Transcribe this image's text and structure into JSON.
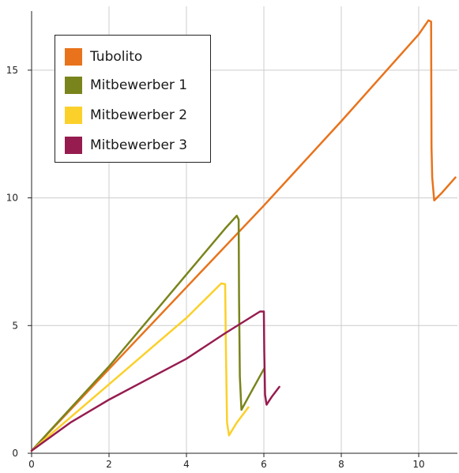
{
  "chart_data": {
    "type": "line",
    "title": "",
    "xlabel": "",
    "ylabel": "",
    "xlim": [
      0,
      11
    ],
    "ylim": [
      0,
      17.5
    ],
    "xticks": [
      0,
      2,
      4,
      6,
      8,
      10
    ],
    "yticks": [
      0,
      5,
      10,
      15
    ],
    "grid": true,
    "legend_position": "top-left",
    "series": [
      {
        "name": "Tubolito",
        "color": "#e8731c",
        "points": [
          [
            0,
            0.1
          ],
          [
            2,
            3.3
          ],
          [
            4,
            6.5
          ],
          [
            6,
            9.7
          ],
          [
            8,
            13.0
          ],
          [
            10,
            16.4
          ],
          [
            10.25,
            16.95
          ],
          [
            10.32,
            16.9
          ],
          [
            10.33,
            12.0
          ],
          [
            10.35,
            10.8
          ],
          [
            10.4,
            9.9
          ],
          [
            10.6,
            10.2
          ],
          [
            10.95,
            10.8
          ]
        ]
      },
      {
        "name": "Mitbewerber 1",
        "color": "#7a841c",
        "points": [
          [
            0,
            0.1
          ],
          [
            1,
            1.75
          ],
          [
            2,
            3.4
          ],
          [
            3,
            5.2
          ],
          [
            4,
            7.0
          ],
          [
            5,
            8.8
          ],
          [
            5.3,
            9.3
          ],
          [
            5.35,
            9.15
          ],
          [
            5.36,
            6.0
          ],
          [
            5.38,
            3.0
          ],
          [
            5.42,
            1.7
          ],
          [
            5.6,
            2.2
          ],
          [
            6.0,
            3.3
          ]
        ]
      },
      {
        "name": "Mitbewerber 2",
        "color": "#fbd02a",
        "points": [
          [
            0,
            0.1
          ],
          [
            1,
            1.4
          ],
          [
            2,
            2.7
          ],
          [
            3,
            4.0
          ],
          [
            4,
            5.3
          ],
          [
            4.9,
            6.65
          ],
          [
            5.0,
            6.62
          ],
          [
            5.02,
            4.0
          ],
          [
            5.05,
            1.2
          ],
          [
            5.1,
            0.7
          ],
          [
            5.3,
            1.2
          ],
          [
            5.6,
            1.8
          ]
        ]
      },
      {
        "name": "Mitbewerber 3",
        "color": "#961c50",
        "points": [
          [
            0,
            0.1
          ],
          [
            1,
            1.2
          ],
          [
            2,
            2.1
          ],
          [
            3,
            2.9
          ],
          [
            4,
            3.7
          ],
          [
            5,
            4.7
          ],
          [
            5.9,
            5.55
          ],
          [
            6.0,
            5.55
          ],
          [
            6.01,
            4.0
          ],
          [
            6.03,
            2.3
          ],
          [
            6.07,
            1.9
          ],
          [
            6.2,
            2.2
          ],
          [
            6.4,
            2.6
          ]
        ]
      }
    ]
  }
}
